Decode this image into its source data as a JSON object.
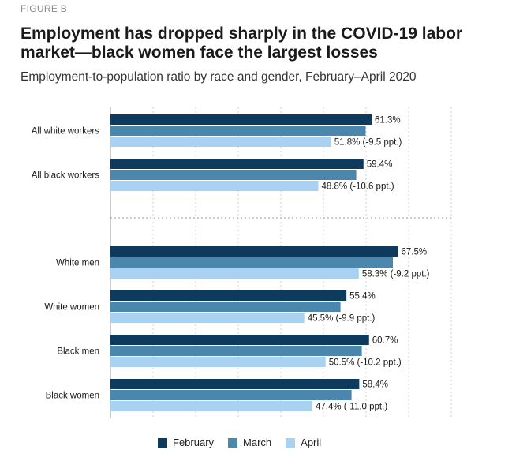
{
  "header": {
    "figure_label": "FIGURE B",
    "title": "Employment has dropped sharply in the COVID-19 labor market—black women face the largest losses",
    "subtitle": "Employment-to-population ratio by race and gender, February–April 2020"
  },
  "colors": {
    "february": "#0e3a5e",
    "march": "#4b86ad",
    "april": "#a9d1f2"
  },
  "chart_data": {
    "type": "bar",
    "orientation": "horizontal",
    "categories": [
      "All white workers",
      "All black workers",
      "White men",
      "White women",
      "Black men",
      "Black women"
    ],
    "series": [
      {
        "name": "February",
        "values": [
          61.3,
          59.4,
          67.5,
          55.4,
          60.7,
          58.4
        ]
      },
      {
        "name": "March",
        "values": [
          59.9,
          57.7,
          66.3,
          54.0,
          59.0,
          56.6
        ]
      },
      {
        "name": "April",
        "values": [
          51.8,
          48.8,
          58.3,
          45.5,
          50.5,
          47.4
        ]
      }
    ],
    "labels": {
      "February": [
        "61.3%",
        "59.4%",
        "67.5%",
        "55.4%",
        "60.7%",
        "58.4%"
      ],
      "April": [
        "51.8% (-9.5 ppt.)",
        "48.8% (-10.6 ppt.)",
        "58.3% (-9.2 ppt.)",
        "45.5% (-9.9 ppt.)",
        "50.5% (-10.2 ppt.)",
        "47.4% (-11.0 ppt.)"
      ]
    },
    "xlim": [
      0,
      80
    ],
    "grid": true,
    "legend_position": "bottom"
  }
}
